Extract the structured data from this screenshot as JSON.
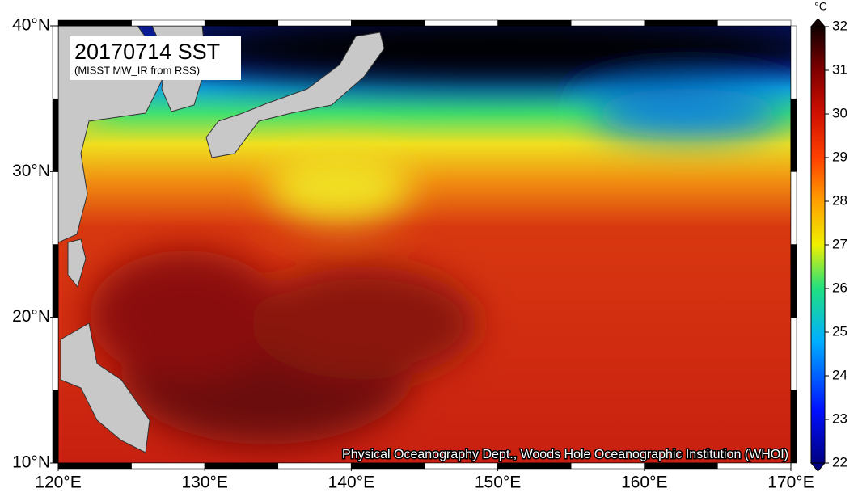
{
  "title": "20170714 SST",
  "subtitle": "(MISST MW_IR from RSS)",
  "credit": "Physical Oceanography Dept., Woods Hole Oceanographic Institution (WHOI)",
  "lon_lim": [
    120,
    170
  ],
  "lat_lim": [
    10,
    40
  ],
  "lon_ticks": [
    {
      "value": 120,
      "label": "120°E"
    },
    {
      "value": 130,
      "label": "130°E"
    },
    {
      "value": 140,
      "label": "140°E"
    },
    {
      "value": 150,
      "label": "150°E"
    },
    {
      "value": 160,
      "label": "160°E"
    },
    {
      "value": 170,
      "label": "170°E"
    }
  ],
  "lat_ticks": [
    {
      "value": 10,
      "label": "10°N"
    },
    {
      "value": 20,
      "label": "20°N"
    },
    {
      "value": 30,
      "label": "30°N"
    },
    {
      "value": 40,
      "label": "40°N"
    }
  ],
  "colorbar": {
    "unit": "°C",
    "lim": [
      22,
      32
    ],
    "ticks": [
      22,
      23,
      24,
      25,
      26,
      27,
      28,
      29,
      30,
      31,
      32
    ]
  }
}
